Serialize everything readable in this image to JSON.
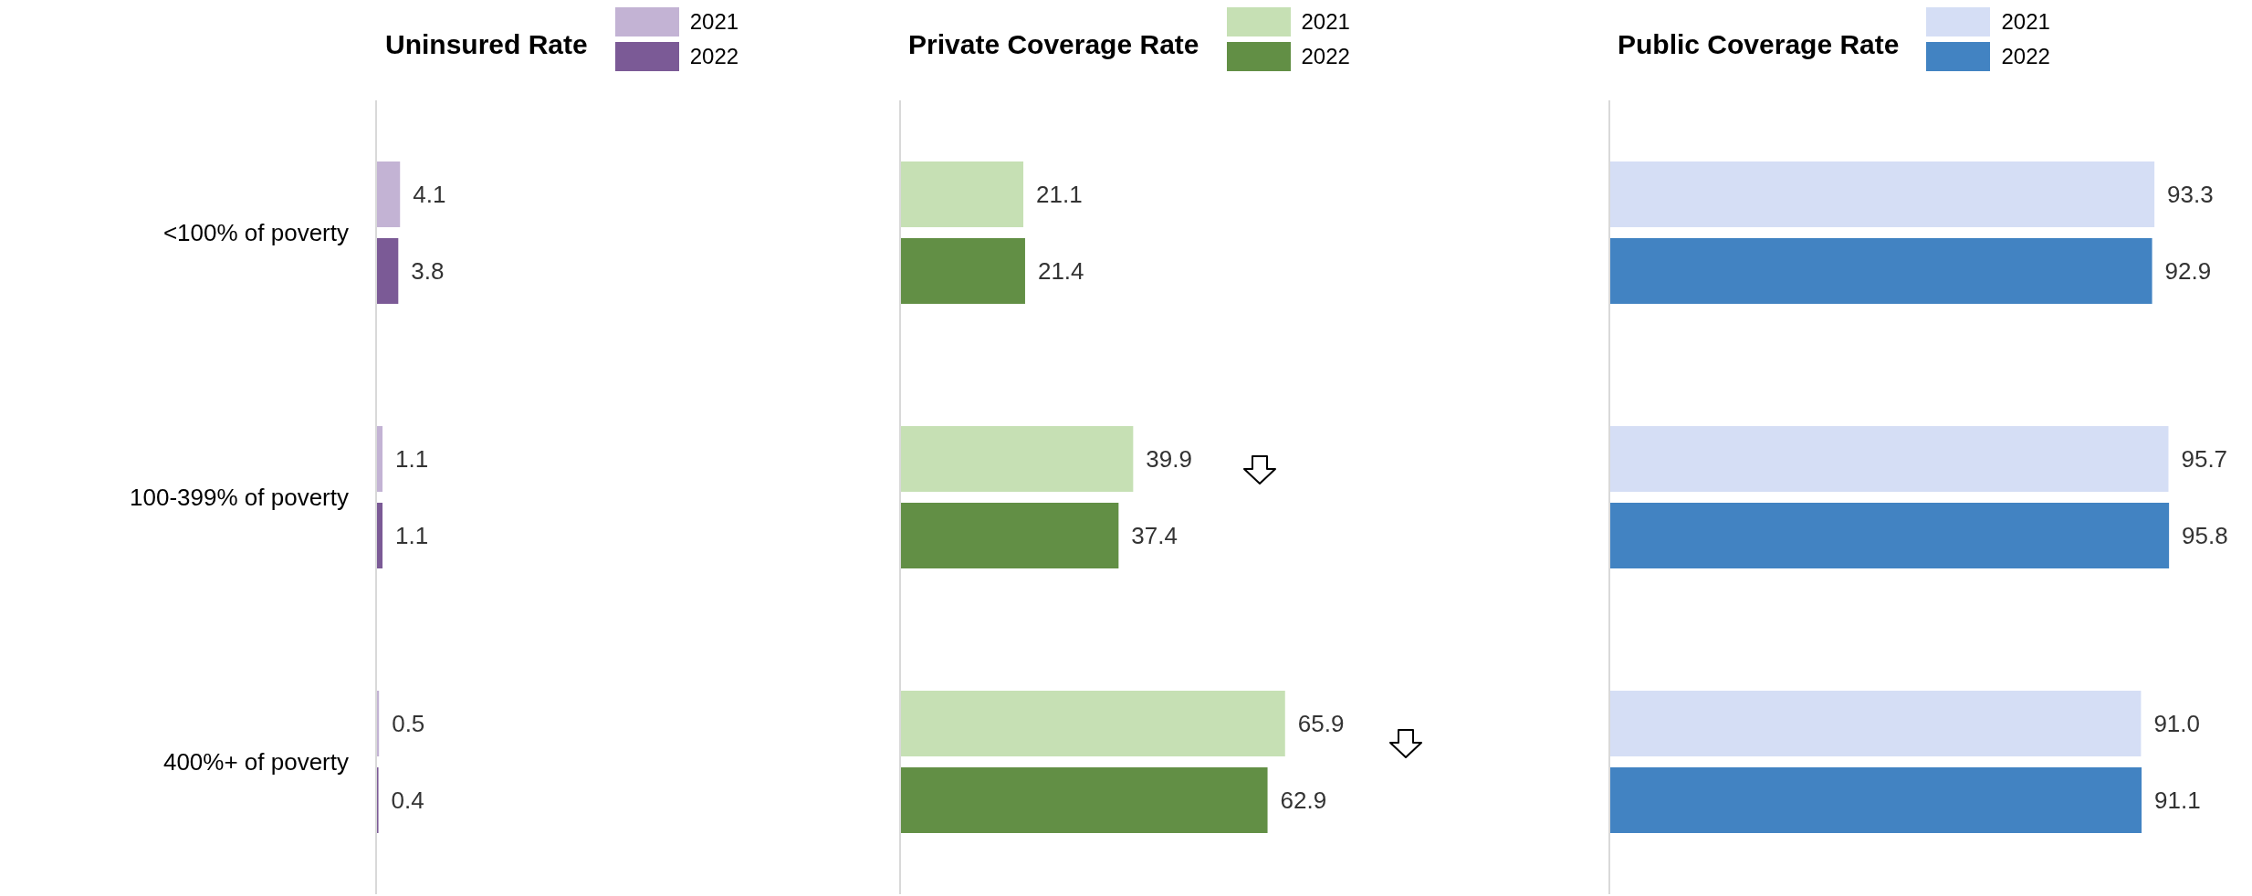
{
  "chart_data": [
    {
      "type": "bar",
      "orientation": "horizontal",
      "title": "Uninsured Rate",
      "categories": [
        "<100% of poverty",
        "100-399% of poverty",
        "400%+ of poverty"
      ],
      "series": [
        {
          "name": "2021",
          "color": "#c3b3d4",
          "values": [
            4.1,
            1.1,
            0.5
          ],
          "value_labels": [
            "4.1",
            "1.1",
            "0.5"
          ]
        },
        {
          "name": "2022",
          "color": "#7b5a96",
          "values": [
            3.8,
            1.1,
            0.4
          ],
          "value_labels": [
            "3.8",
            "1.1",
            "0.4"
          ]
        }
      ],
      "legend": "top right",
      "tick_labels": "y"
    },
    {
      "type": "bar",
      "orientation": "horizontal",
      "title": "Private Coverage Rate",
      "categories": [
        null,
        null,
        null
      ],
      "series": [
        {
          "name": "2021",
          "color": "#c6e0b4",
          "values": [
            21.1,
            39.9,
            65.9
          ],
          "value_labels": [
            "21.1",
            "39.9",
            "65.9"
          ]
        },
        {
          "name": "2022",
          "color": "#628f45",
          "values": [
            21.4,
            37.4,
            62.9
          ],
          "value_labels": [
            "21.4",
            "37.4",
            "62.9"
          ]
        }
      ],
      "legend": "top right",
      "tick_labels": false
    },
    {
      "type": "bar",
      "orientation": "horizontal",
      "title": "Public Coverage Rate",
      "categories": [
        null,
        null,
        null
      ],
      "series": [
        {
          "name": "2021",
          "color": "#d5def5",
          "values": [
            93.3,
            95.7,
            91.0
          ],
          "value_labels": [
            "93.3",
            "95.7",
            "91.0"
          ]
        },
        {
          "name": "2022",
          "color": "#4283c2",
          "values": [
            92.9,
            95.8,
            91.1
          ],
          "value_labels": [
            "92.9",
            "95.8",
            "91.1"
          ]
        }
      ],
      "legend": "top right",
      "tick_labels": false
    }
  ]
}
